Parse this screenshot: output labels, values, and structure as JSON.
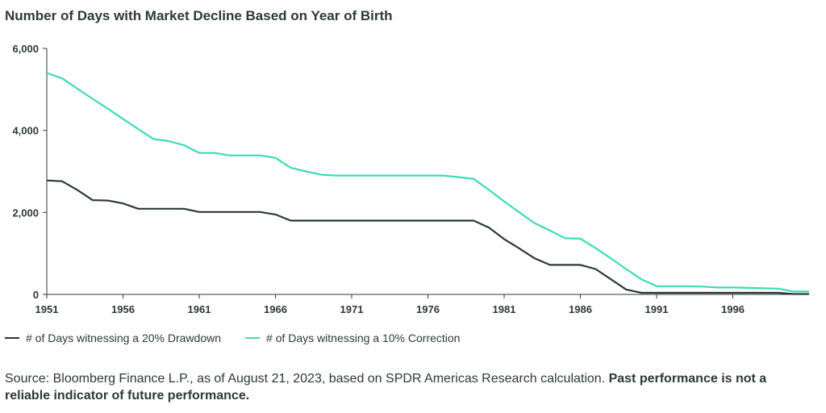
{
  "chart_data": {
    "type": "line",
    "title": "Number of Days with Market Decline Based on Year of Birth",
    "x_ticks": [
      "1951",
      "1956",
      "1961",
      "1966",
      "1971",
      "1976",
      "1981",
      "1986",
      "1991",
      "1996"
    ],
    "y_ticks": [
      "0",
      "2,000",
      "4,000",
      "6,000"
    ],
    "xlim": [
      1951,
      2001
    ],
    "ylim": [
      0,
      6000
    ],
    "grid": false,
    "legend_position": "bottom-left",
    "series": [
      {
        "name": "# of Days witnessing a 20% Drawdown",
        "color": "#2b3a35",
        "points": [
          [
            1951,
            2780
          ],
          [
            1952,
            2760
          ],
          [
            1953,
            2550
          ],
          [
            1954,
            2300
          ],
          [
            1955,
            2290
          ],
          [
            1956,
            2220
          ],
          [
            1957,
            2090
          ],
          [
            1958,
            2090
          ],
          [
            1959,
            2090
          ],
          [
            1960,
            2090
          ],
          [
            1961,
            2010
          ],
          [
            1962,
            2010
          ],
          [
            1963,
            2010
          ],
          [
            1964,
            2010
          ],
          [
            1965,
            2010
          ],
          [
            1966,
            1950
          ],
          [
            1967,
            1800
          ],
          [
            1968,
            1800
          ],
          [
            1969,
            1800
          ],
          [
            1970,
            1800
          ],
          [
            1971,
            1800
          ],
          [
            1972,
            1800
          ],
          [
            1973,
            1800
          ],
          [
            1974,
            1800
          ],
          [
            1975,
            1800
          ],
          [
            1976,
            1800
          ],
          [
            1977,
            1800
          ],
          [
            1978,
            1800
          ],
          [
            1979,
            1800
          ],
          [
            1980,
            1630
          ],
          [
            1981,
            1350
          ],
          [
            1982,
            1120
          ],
          [
            1983,
            880
          ],
          [
            1984,
            720
          ],
          [
            1985,
            720
          ],
          [
            1986,
            720
          ],
          [
            1987,
            620
          ],
          [
            1988,
            370
          ],
          [
            1989,
            120
          ],
          [
            1990,
            40
          ],
          [
            1991,
            40
          ],
          [
            1992,
            40
          ],
          [
            1993,
            40
          ],
          [
            1994,
            40
          ],
          [
            1995,
            40
          ],
          [
            1996,
            40
          ],
          [
            1997,
            40
          ],
          [
            1998,
            40
          ],
          [
            1999,
            40
          ],
          [
            2000,
            10
          ],
          [
            2001,
            10
          ]
        ]
      },
      {
        "name": "# of Days witnessing a 10% Correction",
        "color": "#3ddbb8",
        "points": [
          [
            1951,
            5400
          ],
          [
            1952,
            5270
          ],
          [
            1953,
            5020
          ],
          [
            1954,
            4770
          ],
          [
            1955,
            4530
          ],
          [
            1956,
            4280
          ],
          [
            1957,
            4030
          ],
          [
            1958,
            3790
          ],
          [
            1959,
            3740
          ],
          [
            1960,
            3640
          ],
          [
            1961,
            3450
          ],
          [
            1962,
            3450
          ],
          [
            1963,
            3390
          ],
          [
            1964,
            3390
          ],
          [
            1965,
            3390
          ],
          [
            1966,
            3330
          ],
          [
            1967,
            3090
          ],
          [
            1968,
            3000
          ],
          [
            1969,
            2920
          ],
          [
            1970,
            2900
          ],
          [
            1971,
            2900
          ],
          [
            1972,
            2900
          ],
          [
            1973,
            2900
          ],
          [
            1974,
            2900
          ],
          [
            1975,
            2900
          ],
          [
            1976,
            2900
          ],
          [
            1977,
            2900
          ],
          [
            1978,
            2860
          ],
          [
            1979,
            2820
          ],
          [
            1980,
            2550
          ],
          [
            1981,
            2270
          ],
          [
            1982,
            2000
          ],
          [
            1983,
            1740
          ],
          [
            1984,
            1560
          ],
          [
            1985,
            1370
          ],
          [
            1986,
            1360
          ],
          [
            1987,
            1130
          ],
          [
            1988,
            880
          ],
          [
            1989,
            620
          ],
          [
            1990,
            370
          ],
          [
            1991,
            200
          ],
          [
            1992,
            200
          ],
          [
            1993,
            200
          ],
          [
            1994,
            190
          ],
          [
            1995,
            170
          ],
          [
            1996,
            170
          ],
          [
            1997,
            160
          ],
          [
            1998,
            150
          ],
          [
            1999,
            140
          ],
          [
            2000,
            70
          ],
          [
            2001,
            70
          ]
        ]
      }
    ]
  },
  "legend": {
    "item1": "# of Days witnessing a 20% Drawdown",
    "item2": "# of Days witnessing a 10% Correction"
  },
  "source": {
    "text": "Source: Bloomberg Finance L.P., as of August 21, 2023, based on SPDR Americas Research calculation. ",
    "bold": "Past performance is not a reliable indicator of future performance."
  }
}
